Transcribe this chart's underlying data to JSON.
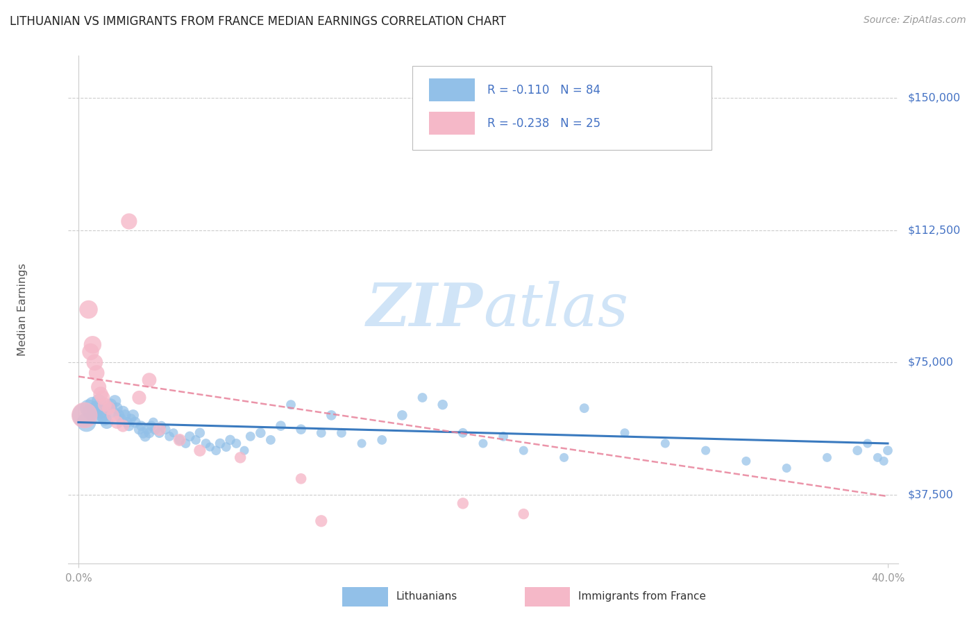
{
  "title": "LITHUANIAN VS IMMIGRANTS FROM FRANCE MEDIAN EARNINGS CORRELATION CHART",
  "source": "Source: ZipAtlas.com",
  "ylabel": "Median Earnings",
  "yticks": [
    0,
    37500,
    75000,
    112500,
    150000
  ],
  "ytick_labels": [
    "",
    "$37,500",
    "$75,000",
    "$112,500",
    "$150,000"
  ],
  "xlim": [
    -0.005,
    0.405
  ],
  "ylim": [
    18000,
    162000
  ],
  "background_color": "#ffffff",
  "grid_color": "#cccccc",
  "watermark_text": "ZIPatlas",
  "watermark_color": "#d0e4f7",
  "blue_color": "#92c0e8",
  "pink_color": "#f5b8c8",
  "trend_blue": "#3a7abf",
  "trend_pink": "#e8829a",
  "label_color": "#4472c4",
  "title_color": "#222222",
  "source_color": "#999999",
  "lith_x": [
    0.003,
    0.004,
    0.005,
    0.006,
    0.007,
    0.008,
    0.009,
    0.01,
    0.011,
    0.012,
    0.013,
    0.014,
    0.015,
    0.016,
    0.017,
    0.018,
    0.019,
    0.02,
    0.021,
    0.022,
    0.023,
    0.024,
    0.025,
    0.026,
    0.027,
    0.028,
    0.03,
    0.031,
    0.032,
    0.033,
    0.034,
    0.035,
    0.036,
    0.037,
    0.038,
    0.04,
    0.041,
    0.043,
    0.045,
    0.047,
    0.05,
    0.053,
    0.055,
    0.058,
    0.06,
    0.063,
    0.065,
    0.068,
    0.07,
    0.073,
    0.075,
    0.078,
    0.082,
    0.085,
    0.09,
    0.095,
    0.1,
    0.105,
    0.11,
    0.12,
    0.125,
    0.13,
    0.14,
    0.15,
    0.16,
    0.17,
    0.18,
    0.19,
    0.2,
    0.21,
    0.22,
    0.24,
    0.25,
    0.27,
    0.29,
    0.31,
    0.33,
    0.35,
    0.37,
    0.385,
    0.39,
    0.395,
    0.398,
    0.4
  ],
  "lith_y": [
    60000,
    58000,
    62000,
    61000,
    63000,
    60000,
    62000,
    64000,
    61000,
    60000,
    59000,
    58000,
    62000,
    63000,
    61000,
    64000,
    62000,
    60000,
    59000,
    61000,
    60000,
    58000,
    57000,
    59000,
    60000,
    58000,
    56000,
    57000,
    55000,
    54000,
    56000,
    55000,
    57000,
    58000,
    56000,
    55000,
    57000,
    56000,
    54000,
    55000,
    53000,
    52000,
    54000,
    53000,
    55000,
    52000,
    51000,
    50000,
    52000,
    51000,
    53000,
    52000,
    50000,
    54000,
    55000,
    53000,
    57000,
    63000,
    56000,
    55000,
    60000,
    55000,
    52000,
    53000,
    60000,
    65000,
    63000,
    55000,
    52000,
    54000,
    50000,
    48000,
    62000,
    55000,
    52000,
    50000,
    47000,
    45000,
    48000,
    50000,
    52000,
    48000,
    47000,
    50000
  ],
  "lith_size": [
    300,
    180,
    150,
    140,
    120,
    130,
    110,
    100,
    95,
    100,
    90,
    85,
    80,
    75,
    70,
    75,
    65,
    60,
    55,
    70,
    65,
    60,
    55,
    50,
    65,
    60,
    55,
    50,
    60,
    55,
    50,
    55,
    50,
    45,
    55,
    50,
    45,
    50,
    45,
    40,
    50,
    45,
    50,
    45,
    50,
    45,
    40,
    45,
    50,
    45,
    50,
    45,
    40,
    45,
    50,
    45,
    50,
    45,
    50,
    45,
    50,
    45,
    40,
    45,
    50,
    45,
    50,
    45,
    40,
    45,
    40,
    40,
    45,
    40,
    40,
    40,
    40,
    40,
    40,
    45,
    40,
    40,
    40,
    45
  ],
  "france_x": [
    0.003,
    0.005,
    0.006,
    0.007,
    0.008,
    0.009,
    0.01,
    0.011,
    0.012,
    0.013,
    0.015,
    0.017,
    0.019,
    0.022,
    0.025,
    0.03,
    0.035,
    0.04,
    0.05,
    0.06,
    0.08,
    0.11,
    0.12,
    0.19,
    0.22
  ],
  "france_y": [
    60000,
    90000,
    78000,
    80000,
    75000,
    72000,
    68000,
    66000,
    65000,
    63000,
    62000,
    60000,
    58000,
    57000,
    115000,
    65000,
    70000,
    56000,
    53000,
    50000,
    48000,
    42000,
    30000,
    35000,
    32000
  ],
  "france_size": [
    260,
    130,
    110,
    120,
    105,
    95,
    90,
    85,
    80,
    75,
    70,
    65,
    65,
    60,
    100,
    75,
    80,
    65,
    60,
    55,
    50,
    45,
    55,
    50,
    45
  ]
}
